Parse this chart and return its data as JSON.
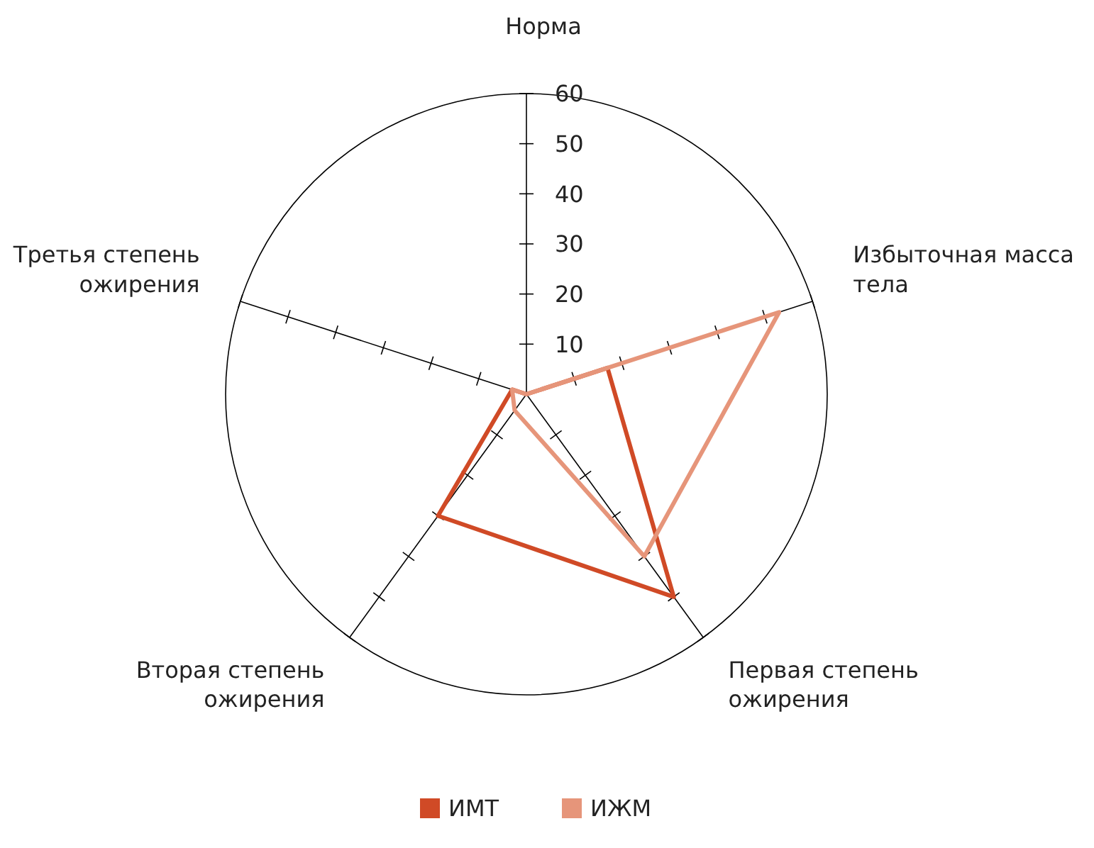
{
  "chart_data": {
    "type": "radar",
    "categories": [
      "Норма",
      "Избыточная масса тела",
      "Первая степень ожирения",
      "Вторая степень ожирения",
      "Третья степень ожирения"
    ],
    "ylim": [
      0,
      60
    ],
    "yticks": [
      10,
      20,
      30,
      40,
      50,
      60
    ],
    "legend": "bottom",
    "marker": "none",
    "series": [
      {
        "name": "ИМТ",
        "color": "#d04a26",
        "values": [
          0,
          17,
          50,
          30,
          3
        ]
      },
      {
        "name": "ИЖМ",
        "color": "#e6957a",
        "values": [
          0,
          53,
          40,
          4,
          3
        ]
      }
    ]
  }
}
